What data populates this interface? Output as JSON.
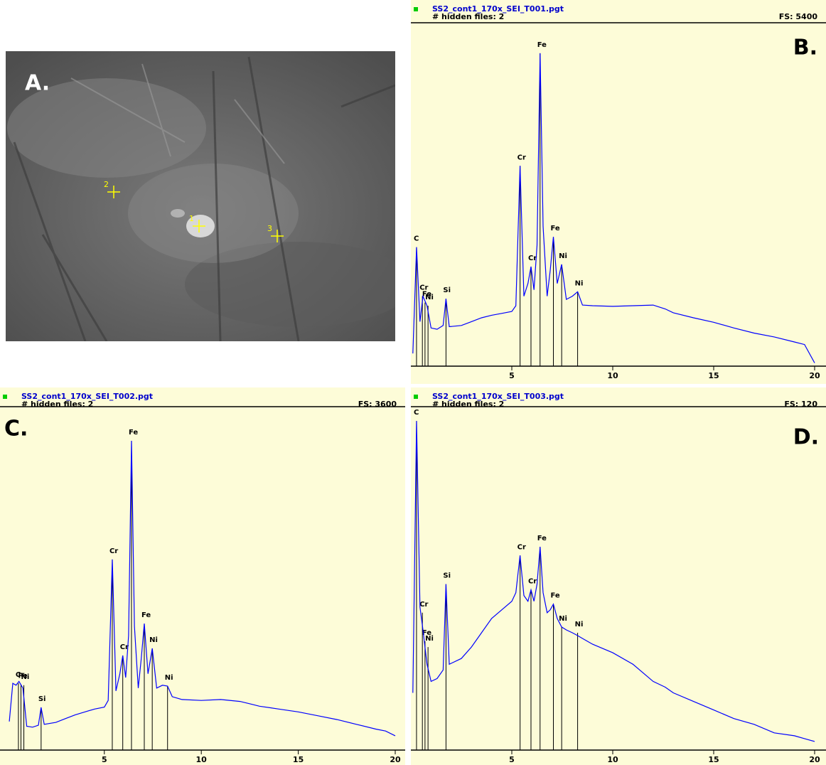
{
  "panel_a": {
    "label": "A.",
    "points": [
      "1",
      "2",
      "3"
    ]
  },
  "chart_data": [
    {
      "type": "line",
      "panel": "B.",
      "file": "SS2_cont1_170x_SEI_T001.pgt",
      "hidden": "# hidden files: 2",
      "fs_label": "FS: 5400",
      "xlim": [
        0,
        20
      ],
      "ylim": [
        0,
        5400
      ],
      "xticks": [
        5,
        10,
        15,
        20
      ],
      "color": "#0000ff",
      "x": [
        0.1,
        0.28,
        0.45,
        0.6,
        0.8,
        1.0,
        1.3,
        1.6,
        1.74,
        1.9,
        2.5,
        3,
        3.5,
        4,
        4.5,
        5,
        5.2,
        5.41,
        5.6,
        5.8,
        5.95,
        6.1,
        6.25,
        6.4,
        6.55,
        6.75,
        6.9,
        7.06,
        7.25,
        7.47,
        7.7,
        8.0,
        8.26,
        8.5,
        9,
        10,
        11,
        12,
        12.6,
        13,
        14,
        15,
        16,
        17,
        18,
        19,
        19.5,
        20
      ],
      "values": [
        200,
        1870,
        700,
        1100,
        950,
        600,
        580,
        640,
        1060,
        620,
        640,
        700,
        760,
        800,
        830,
        860,
        950,
        3150,
        1100,
        1300,
        1565,
        1200,
        1900,
        4920,
        2200,
        1100,
        1500,
        2035,
        1300,
        1600,
        1050,
        1100,
        1170,
        960,
        950,
        940,
        950,
        960,
        900,
        840,
        760,
        690,
        600,
        520,
        460,
        380,
        340,
        50
      ],
      "markers": [
        {
          "label": "C",
          "energy": 0.28,
          "height": 1870
        },
        {
          "label": "Cr",
          "energy": 0.57,
          "height": 1100
        },
        {
          "label": "Fe",
          "energy": 0.7,
          "height": 1000
        },
        {
          "label": "Ni",
          "energy": 0.85,
          "height": 950
        },
        {
          "label": "Si",
          "energy": 1.74,
          "height": 1060
        },
        {
          "label": "Cr",
          "energy": 5.41,
          "height": 3150
        },
        {
          "label": "Cr",
          "energy": 5.95,
          "height": 1565
        },
        {
          "label": "Fe",
          "energy": 6.4,
          "height": 4920
        },
        {
          "label": "Fe",
          "energy": 7.06,
          "height": 2035
        },
        {
          "label": "Ni",
          "energy": 7.47,
          "height": 1600
        },
        {
          "label": "Ni",
          "energy": 8.26,
          "height": 1170
        }
      ]
    },
    {
      "type": "line",
      "panel": "C.",
      "file": "SS2_cont1_170x_SEI_T002.pgt",
      "hidden": "# hidden files: 2",
      "fs_label": "FS: 3600",
      "xlim": [
        -0.38,
        20
      ],
      "ylim": [
        0,
        3600
      ],
      "xticks": [
        5,
        10,
        15,
        20
      ],
      "color": "#0000ff",
      "x": [
        0.1,
        0.28,
        0.45,
        0.6,
        0.8,
        1.0,
        1.3,
        1.6,
        1.74,
        1.9,
        2.5,
        3,
        3.5,
        4,
        4.5,
        5,
        5.2,
        5.41,
        5.6,
        5.8,
        5.95,
        6.1,
        6.25,
        6.4,
        6.55,
        6.75,
        6.9,
        7.06,
        7.25,
        7.47,
        7.7,
        8.0,
        8.26,
        8.5,
        9,
        10,
        11,
        12,
        12.6,
        13,
        14,
        15,
        16,
        17,
        18,
        19,
        19.5,
        20
      ],
      "values": [
        300,
        700,
        680,
        720,
        650,
        250,
        240,
        260,
        447,
        270,
        290,
        330,
        370,
        400,
        430,
        450,
        520,
        1998,
        620,
        800,
        991,
        760,
        1200,
        3242,
        1300,
        650,
        950,
        1327,
        800,
        1066,
        650,
        680,
        671,
        560,
        530,
        520,
        530,
        510,
        480,
        460,
        430,
        400,
        360,
        320,
        270,
        220,
        200,
        150
      ],
      "markers": [
        {
          "label": "Cr",
          "energy": 0.57,
          "height": 700
        },
        {
          "label": "Fe",
          "energy": 0.7,
          "height": 690
        },
        {
          "label": "Ni",
          "energy": 0.85,
          "height": 680
        },
        {
          "label": "Si",
          "energy": 1.74,
          "height": 447
        },
        {
          "label": "Cr",
          "energy": 5.41,
          "height": 1998
        },
        {
          "label": "Cr",
          "energy": 5.95,
          "height": 991
        },
        {
          "label": "Fe",
          "energy": 6.4,
          "height": 3242
        },
        {
          "label": "Fe",
          "energy": 7.06,
          "height": 1327
        },
        {
          "label": "Ni",
          "energy": 7.47,
          "height": 1066
        },
        {
          "label": "Ni",
          "energy": 8.26,
          "height": 671
        }
      ]
    },
    {
      "type": "line",
      "panel": "D.",
      "file": "SS2_cont1_170x_SEI_T003.pgt",
      "hidden": "# hidden files: 2",
      "fs_label": "FS: 120",
      "xlim": [
        0,
        20
      ],
      "ylim": [
        0,
        120
      ],
      "xticks": [
        5,
        10,
        15,
        20
      ],
      "color": "#0000ff",
      "x": [
        0.1,
        0.28,
        0.45,
        0.6,
        0.8,
        1.0,
        1.3,
        1.6,
        1.74,
        1.9,
        2.5,
        3,
        3.5,
        4,
        4.5,
        5,
        5.2,
        5.41,
        5.6,
        5.8,
        5.95,
        6.1,
        6.25,
        6.4,
        6.55,
        6.75,
        6.9,
        7.06,
        7.25,
        7.47,
        7.7,
        8.0,
        8.26,
        8.5,
        9,
        10,
        11,
        12,
        12.6,
        13,
        14,
        15,
        16,
        17,
        18,
        19,
        19.5,
        20
      ],
      "values": [
        20,
        115,
        50,
        42,
        30,
        24,
        25,
        28,
        58,
        30,
        32,
        36,
        41,
        46,
        49,
        52,
        55,
        68,
        54,
        52,
        56,
        52,
        58,
        71,
        55,
        48,
        49,
        51,
        46,
        43,
        42,
        41,
        40,
        39,
        37,
        34,
        30,
        24,
        22,
        20,
        17,
        14,
        11,
        9,
        6,
        5,
        4,
        3
      ],
      "markers": [
        {
          "label": "C",
          "energy": 0.28,
          "height": 115
        },
        {
          "label": "Cr",
          "energy": 0.57,
          "height": 48
        },
        {
          "label": "Fe",
          "energy": 0.7,
          "height": 38
        },
        {
          "label": "Ni",
          "energy": 0.85,
          "height": 36
        },
        {
          "label": "Si",
          "energy": 1.74,
          "height": 58
        },
        {
          "label": "Cr",
          "energy": 5.41,
          "height": 68
        },
        {
          "label": "Cr",
          "energy": 5.95,
          "height": 56
        },
        {
          "label": "Fe",
          "energy": 6.4,
          "height": 71
        },
        {
          "label": "Fe",
          "energy": 7.06,
          "height": 51
        },
        {
          "label": "Ni",
          "energy": 7.47,
          "height": 43
        },
        {
          "label": "Ni",
          "energy": 8.26,
          "height": 41
        }
      ]
    }
  ]
}
